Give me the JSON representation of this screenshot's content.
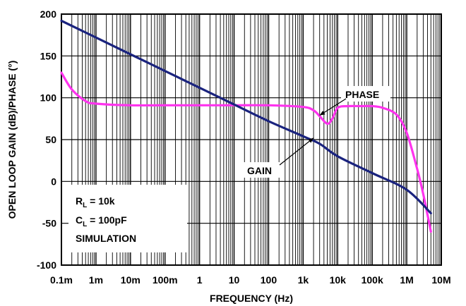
{
  "chart_data": {
    "type": "line",
    "x_scale": "log",
    "xlim": [
      0.0001,
      10000000
    ],
    "ylim": [
      -100,
      200
    ],
    "xlabel": "FREQUENCY (Hz)",
    "ylabel": "OPEN LOOP GAIN (dB)/PHASE (°)",
    "x_tick_values": [
      0.0001,
      0.001,
      0.01,
      0.1,
      1,
      10,
      100,
      1000,
      10000,
      100000,
      1000000,
      10000000
    ],
    "x_tick_labels": [
      "0.1m",
      "1m",
      "10m",
      "100m",
      "1",
      "10",
      "100",
      "1k",
      "10k",
      "100k",
      "1M",
      "10M"
    ],
    "y_tick_values": [
      200,
      150,
      100,
      50,
      0,
      -50,
      -100
    ],
    "y_tick_labels": [
      "200",
      "150",
      "100",
      "50",
      "0",
      "-50",
      "-100"
    ],
    "grid": true,
    "series": [
      {
        "name": "GAIN",
        "color": "#1a237e",
        "x": [
          0.0001,
          0.001,
          0.01,
          0.1,
          1,
          10,
          100,
          1000,
          3000,
          10000,
          100000,
          1000000,
          5000000
        ],
        "y": [
          192,
          172,
          152,
          132,
          112,
          92,
          72,
          54,
          45,
          30,
          10,
          -10,
          -38
        ]
      },
      {
        "name": "PHASE",
        "color": "#ff33ee",
        "x": [
          0.0001,
          0.0002,
          0.0005,
          0.001,
          0.01,
          0.1,
          1,
          10,
          100,
          1000,
          2000,
          3000,
          5000,
          7000,
          10000,
          20000,
          50000,
          100000,
          200000,
          500000,
          1000000,
          2000000,
          3000000,
          5000000
        ],
        "y": [
          130,
          110,
          96,
          93,
          91,
          91,
          91,
          91,
          91,
          89,
          85,
          78,
          69,
          75,
          88,
          90,
          90,
          90,
          88,
          80,
          58,
          15,
          -15,
          -60
        ]
      }
    ],
    "annotations": [
      {
        "text": "PHASE",
        "x": 3000,
        "y": 79
      },
      {
        "text": "GAIN",
        "x": 2000,
        "y": 52
      }
    ],
    "legend_box": {
      "rl_main": "R",
      "rl_sub": "L",
      "rl_rest": " = 10k",
      "cl_main": "C",
      "cl_sub": "L",
      "cl_rest": " = 100pF",
      "note": "SIMULATION"
    }
  }
}
